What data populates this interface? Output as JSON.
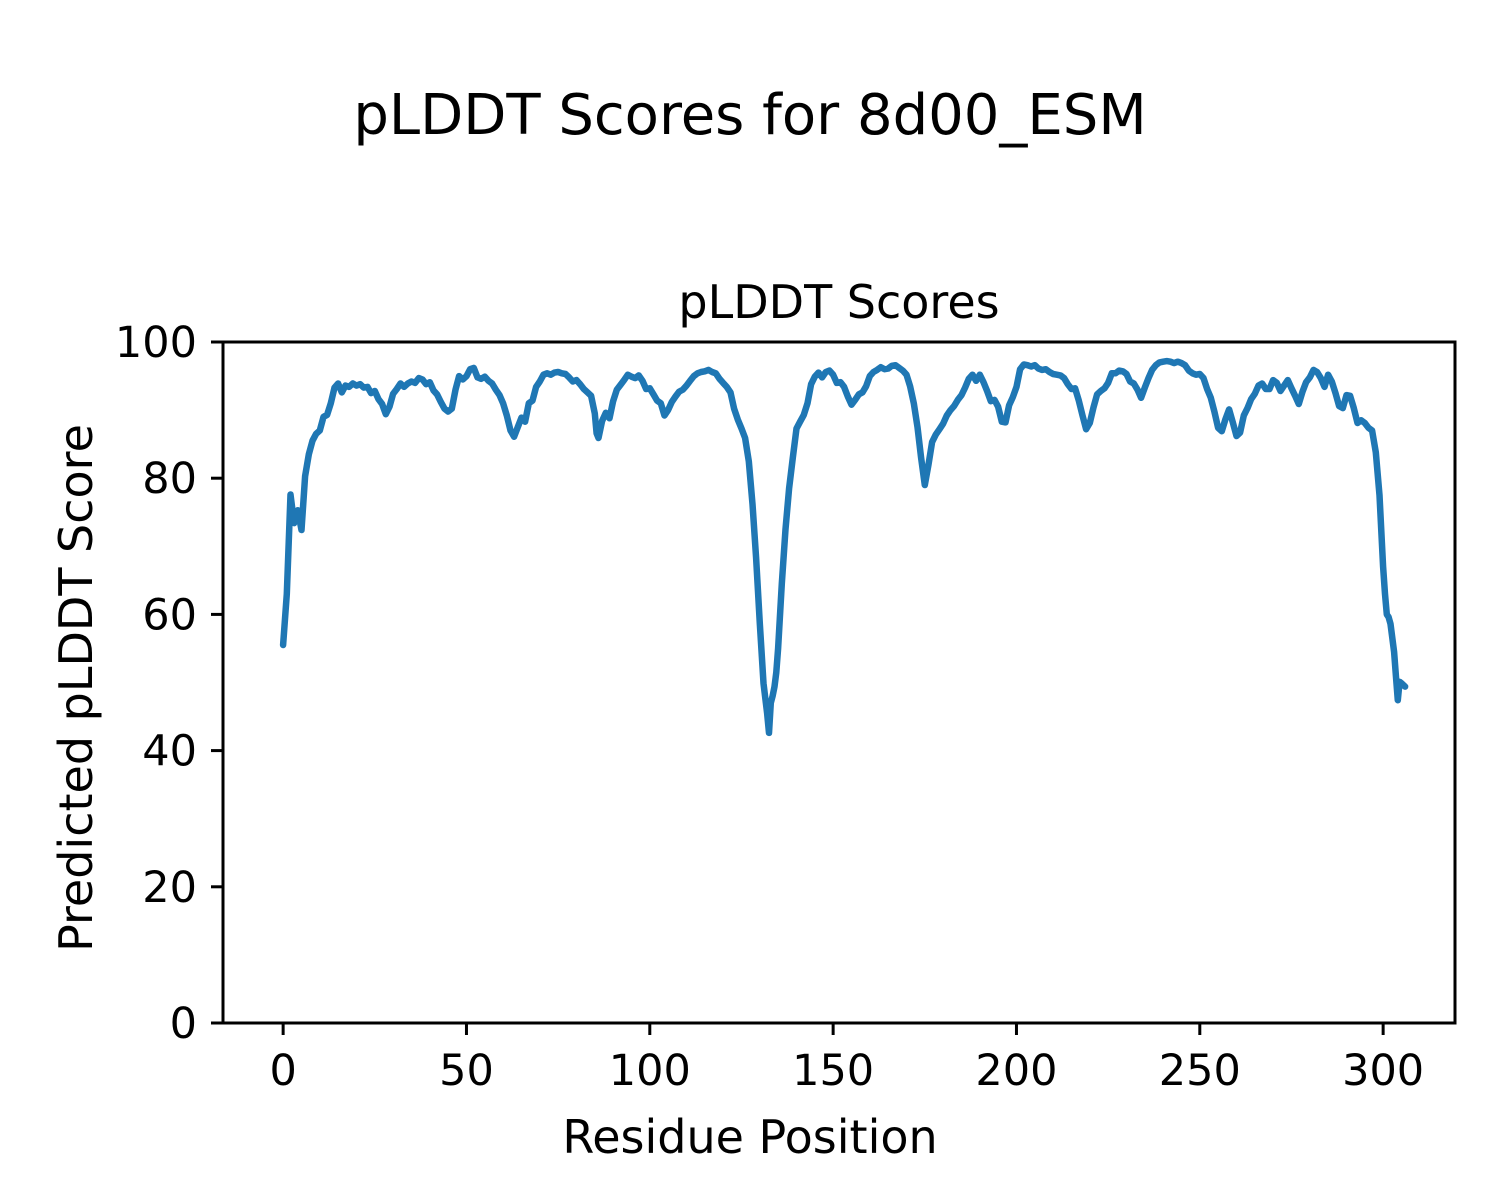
{
  "figure": {
    "suptitle": "pLDDT Scores for 8d00_ESM",
    "axes_title": "pLDDT Scores",
    "xlabel": "Residue Position",
    "ylabel": "Predicted pLDDT Score"
  },
  "colors": {
    "background": "#ffffff",
    "text": "#000000",
    "line": "#1f77b4",
    "spine": "#000000"
  },
  "chart_data": {
    "type": "line",
    "title": "pLDDT Scores",
    "suptitle": "pLDDT Scores for 8d00_ESM",
    "xlabel": "Residue Position",
    "ylabel": "Predicted pLDDT Score",
    "xlim": [
      -16.4,
      319.6
    ],
    "ylim": [
      0,
      100
    ],
    "xticks": [
      0,
      50,
      100,
      150,
      200,
      250,
      300
    ],
    "yticks": [
      0,
      20,
      40,
      60,
      80,
      100
    ],
    "grid": false,
    "legend_position": "none",
    "line_color": "#1f77b4",
    "line_width": 6.5,
    "series": [
      {
        "name": "pLDDT",
        "points": [
          [
            0,
            55.5
          ],
          [
            1,
            63
          ],
          [
            2,
            77.6
          ],
          [
            3,
            73.4
          ],
          [
            4,
            75.3
          ],
          [
            5,
            72.4
          ],
          [
            6,
            80.3
          ],
          [
            7,
            83.5
          ],
          [
            8,
            85.5
          ],
          [
            9,
            86.5
          ],
          [
            10,
            87
          ],
          [
            11,
            89
          ],
          [
            12,
            89.3
          ],
          [
            13,
            91
          ],
          [
            14,
            93.3
          ],
          [
            15,
            93.9
          ],
          [
            16,
            92.6
          ],
          [
            17,
            93.6
          ],
          [
            18,
            93.4
          ],
          [
            19,
            93.9
          ],
          [
            20,
            93.6
          ],
          [
            21,
            93.8
          ],
          [
            22,
            93.3
          ],
          [
            23,
            93.4
          ],
          [
            24,
            92.5
          ],
          [
            25,
            92.8
          ],
          [
            26,
            91.6
          ],
          [
            27,
            90.9
          ],
          [
            28,
            89.4
          ],
          [
            29,
            90.5
          ],
          [
            30,
            92.4
          ],
          [
            31,
            93.1
          ],
          [
            32,
            93.9
          ],
          [
            33,
            93.4
          ],
          [
            34,
            93.9
          ],
          [
            35,
            94.2
          ],
          [
            36,
            94
          ],
          [
            37,
            94.7
          ],
          [
            38,
            94.5
          ],
          [
            39,
            93.8
          ],
          [
            40,
            94.1
          ],
          [
            41,
            92.9
          ],
          [
            42,
            92.3
          ],
          [
            43,
            91.2
          ],
          [
            44,
            90.2
          ],
          [
            45,
            89.8
          ],
          [
            46,
            90.2
          ],
          [
            47,
            93
          ],
          [
            48,
            95
          ],
          [
            49,
            94.5
          ],
          [
            50,
            95
          ],
          [
            51,
            96
          ],
          [
            52,
            96.2
          ],
          [
            53,
            94.8
          ],
          [
            54,
            94.6
          ],
          [
            55,
            94.9
          ],
          [
            56,
            94.3
          ],
          [
            57,
            93.9
          ],
          [
            58,
            93
          ],
          [
            59,
            92.2
          ],
          [
            60,
            91
          ],
          [
            61,
            89.2
          ],
          [
            62,
            87
          ],
          [
            63,
            86.1
          ],
          [
            64,
            87.5
          ],
          [
            65,
            88.9
          ],
          [
            66,
            88.3
          ],
          [
            67,
            91
          ],
          [
            68,
            91.4
          ],
          [
            69,
            93.4
          ],
          [
            70,
            94.2
          ],
          [
            71,
            95.2
          ],
          [
            72,
            95.4
          ],
          [
            73,
            95.2
          ],
          [
            74,
            95.5
          ],
          [
            75,
            95.6
          ],
          [
            76,
            95.4
          ],
          [
            77,
            95.3
          ],
          [
            78,
            94.8
          ],
          [
            79,
            94.2
          ],
          [
            80,
            94.4
          ],
          [
            81,
            93.8
          ],
          [
            82,
            93.1
          ],
          [
            83,
            92.6
          ],
          [
            84,
            92.1
          ],
          [
            85,
            89.5
          ],
          [
            85.5,
            86.6
          ],
          [
            86,
            85.9
          ],
          [
            87,
            88.4
          ],
          [
            88,
            89.6
          ],
          [
            89,
            88.8
          ],
          [
            90,
            91.3
          ],
          [
            91,
            93
          ],
          [
            92,
            93.7
          ],
          [
            93,
            94.4
          ],
          [
            94,
            95.2
          ],
          [
            95,
            94.9
          ],
          [
            96,
            94.7
          ],
          [
            97,
            95.1
          ],
          [
            98,
            94.3
          ],
          [
            99,
            93.1
          ],
          [
            100,
            93.2
          ],
          [
            101,
            92.3
          ],
          [
            102,
            91.4
          ],
          [
            103,
            91
          ],
          [
            104,
            89.2
          ],
          [
            105,
            90
          ],
          [
            106,
            91.2
          ],
          [
            107,
            92
          ],
          [
            108,
            92.7
          ],
          [
            109,
            93
          ],
          [
            110,
            93.6
          ],
          [
            111,
            94.3
          ],
          [
            112,
            95
          ],
          [
            113,
            95.4
          ],
          [
            114,
            95.6
          ],
          [
            115,
            95.7
          ],
          [
            116,
            95.9
          ],
          [
            117,
            95.6
          ],
          [
            118,
            95.4
          ],
          [
            119,
            94.6
          ],
          [
            120,
            94
          ],
          [
            121,
            93.4
          ],
          [
            122,
            92.6
          ],
          [
            123,
            90.2
          ],
          [
            124,
            88.6
          ],
          [
            125,
            87.3
          ],
          [
            126,
            85.9
          ],
          [
            127,
            82.5
          ],
          [
            128,
            76.2
          ],
          [
            129,
            68.3
          ],
          [
            130,
            58.7
          ],
          [
            131,
            49.9
          ],
          [
            131.5,
            47.7
          ],
          [
            132,
            45.5
          ],
          [
            132.5,
            42.6
          ],
          [
            133,
            47
          ],
          [
            133.5,
            48
          ],
          [
            134,
            49.4
          ],
          [
            134.5,
            51.5
          ],
          [
            135,
            55
          ],
          [
            136,
            64.5
          ],
          [
            137,
            72.5
          ],
          [
            138,
            78.5
          ],
          [
            139,
            83
          ],
          [
            140,
            87.3
          ],
          [
            141,
            88.3
          ],
          [
            142,
            89.3
          ],
          [
            143,
            91
          ],
          [
            144,
            93.8
          ],
          [
            145,
            94.9
          ],
          [
            146,
            95.5
          ],
          [
            147,
            94.8
          ],
          [
            148,
            95.6
          ],
          [
            149,
            95.8
          ],
          [
            150,
            95.2
          ],
          [
            151,
            94
          ],
          [
            152,
            94.1
          ],
          [
            153,
            93.4
          ],
          [
            154,
            92
          ],
          [
            155,
            90.8
          ],
          [
            156,
            91.5
          ],
          [
            157,
            92.3
          ],
          [
            158,
            92.6
          ],
          [
            159,
            93.5
          ],
          [
            160,
            95
          ],
          [
            161,
            95.6
          ],
          [
            162,
            95.9
          ],
          [
            163,
            96.3
          ],
          [
            164,
            96
          ],
          [
            165,
            96.1
          ],
          [
            166,
            96.5
          ],
          [
            167,
            96.6
          ],
          [
            168,
            96.2
          ],
          [
            169,
            95.8
          ],
          [
            170,
            95.2
          ],
          [
            171,
            93.5
          ],
          [
            172,
            91
          ],
          [
            173,
            87.5
          ],
          [
            174,
            83
          ],
          [
            175,
            79
          ],
          [
            176,
            82
          ],
          [
            177,
            85.3
          ],
          [
            178,
            86.4
          ],
          [
            179,
            87.2
          ],
          [
            180,
            88
          ],
          [
            181,
            89.2
          ],
          [
            182,
            90
          ],
          [
            183,
            90.6
          ],
          [
            184,
            91.5
          ],
          [
            185,
            92.2
          ],
          [
            186,
            93.3
          ],
          [
            187,
            94.6
          ],
          [
            188,
            95.2
          ],
          [
            189,
            94.3
          ],
          [
            190,
            95.2
          ],
          [
            191,
            94.1
          ],
          [
            192,
            92.8
          ],
          [
            193,
            91.3
          ],
          [
            194,
            91.5
          ],
          [
            195,
            90.5
          ],
          [
            196,
            88.3
          ],
          [
            197,
            88.2
          ],
          [
            198,
            90.7
          ],
          [
            199,
            91.9
          ],
          [
            200,
            93.4
          ],
          [
            201,
            96
          ],
          [
            202,
            96.7
          ],
          [
            203,
            96.6
          ],
          [
            204,
            96.4
          ],
          [
            205,
            96.6
          ],
          [
            206,
            96.1
          ],
          [
            207,
            95.9
          ],
          [
            208,
            96
          ],
          [
            209,
            95.6
          ],
          [
            210,
            95.3
          ],
          [
            211,
            95.2
          ],
          [
            212,
            95.1
          ],
          [
            213,
            94.7
          ],
          [
            214,
            93.8
          ],
          [
            215,
            93.1
          ],
          [
            216,
            93.2
          ],
          [
            217,
            91.4
          ],
          [
            218,
            89.2
          ],
          [
            219,
            87.2
          ],
          [
            220,
            88.1
          ],
          [
            221,
            90.4
          ],
          [
            222,
            92.3
          ],
          [
            223,
            92.8
          ],
          [
            224,
            93.2
          ],
          [
            225,
            94
          ],
          [
            226,
            95.4
          ],
          [
            227,
            95.4
          ],
          [
            228,
            95.8
          ],
          [
            229,
            95.7
          ],
          [
            230,
            95.3
          ],
          [
            231,
            94.2
          ],
          [
            232,
            93.9
          ],
          [
            233,
            93
          ],
          [
            234,
            91.8
          ],
          [
            235,
            93.3
          ],
          [
            236,
            94.7
          ],
          [
            237,
            95.9
          ],
          [
            238,
            96.6
          ],
          [
            239,
            97
          ],
          [
            240,
            97.1
          ],
          [
            241,
            97.2
          ],
          [
            242,
            97.1
          ],
          [
            243,
            96.9
          ],
          [
            244,
            97.1
          ],
          [
            245,
            96.9
          ],
          [
            246,
            96.6
          ],
          [
            247,
            95.8
          ],
          [
            248,
            95.4
          ],
          [
            249,
            95.2
          ],
          [
            250,
            95.3
          ],
          [
            251,
            94.7
          ],
          [
            252,
            93.1
          ],
          [
            253,
            91.8
          ],
          [
            254,
            89.7
          ],
          [
            255,
            87.4
          ],
          [
            256,
            86.9
          ],
          [
            257,
            88.7
          ],
          [
            258,
            90.1
          ],
          [
            259,
            88.2
          ],
          [
            260,
            86.2
          ],
          [
            261,
            86.7
          ],
          [
            262,
            89.2
          ],
          [
            263,
            90.3
          ],
          [
            264,
            91.6
          ],
          [
            265,
            92.4
          ],
          [
            266,
            93.6
          ],
          [
            267,
            93.9
          ],
          [
            268,
            93.1
          ],
          [
            269,
            93.1
          ],
          [
            270,
            94.4
          ],
          [
            271,
            94
          ],
          [
            272,
            92.8
          ],
          [
            273,
            93.6
          ],
          [
            274,
            94.4
          ],
          [
            275,
            93.2
          ],
          [
            276,
            92.1
          ],
          [
            277,
            90.9
          ],
          [
            278,
            92.7
          ],
          [
            279,
            94.1
          ],
          [
            280,
            94.8
          ],
          [
            281,
            95.9
          ],
          [
            282,
            95.6
          ],
          [
            283,
            94.7
          ],
          [
            284,
            93.4
          ],
          [
            285,
            95.2
          ],
          [
            286,
            94.2
          ],
          [
            287,
            92.5
          ],
          [
            288,
            90.6
          ],
          [
            289,
            90.3
          ],
          [
            290,
            92.2
          ],
          [
            291,
            92.1
          ],
          [
            292,
            90.3
          ],
          [
            293,
            88.1
          ],
          [
            294,
            88.5
          ],
          [
            295,
            88.1
          ],
          [
            296,
            87.4
          ],
          [
            297,
            87
          ],
          [
            298,
            83.8
          ],
          [
            299,
            77.5
          ],
          [
            300,
            67
          ],
          [
            300.5,
            63
          ],
          [
            301,
            60
          ],
          [
            301.5,
            59.6
          ],
          [
            302,
            58.6
          ],
          [
            303,
            54.5
          ],
          [
            303.5,
            50.8
          ],
          [
            304,
            47.4
          ],
          [
            304.5,
            50.1
          ],
          [
            305,
            49.9
          ],
          [
            306,
            49.4
          ]
        ]
      }
    ]
  }
}
